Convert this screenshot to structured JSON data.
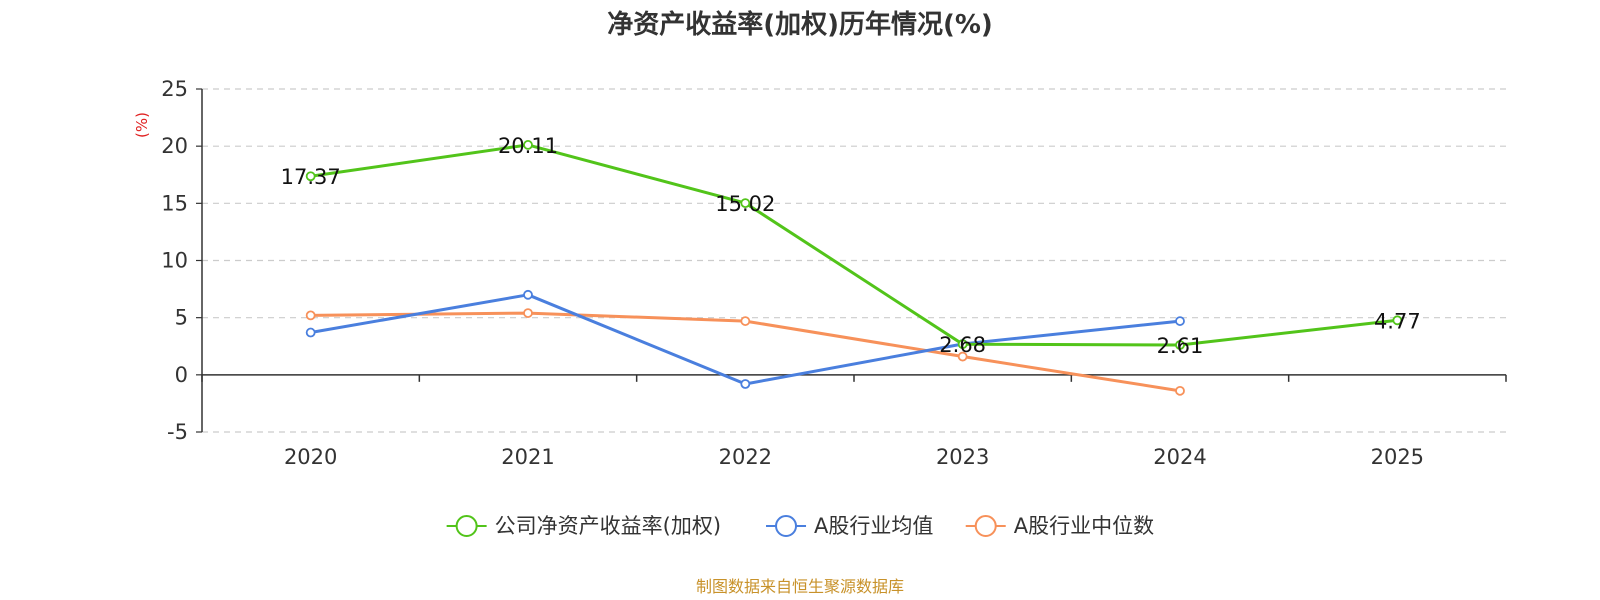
{
  "chart_data": {
    "type": "line",
    "title": "净资产收益率(加权)历年情况(%)",
    "ylabel": "(%)",
    "xlabel": "",
    "categories": [
      "2020",
      "2021",
      "2022",
      "2023",
      "2024",
      "2025"
    ],
    "ylim": [
      -5,
      25
    ],
    "yticks": [
      -5,
      0,
      5,
      10,
      15,
      20,
      25
    ],
    "grid": true,
    "legend_position": "bottom",
    "series": [
      {
        "name": "公司净资产收益率(加权)",
        "color": "#52c41a",
        "values": [
          17.37,
          20.11,
          15.02,
          2.68,
          2.61,
          4.77
        ],
        "labels": [
          "17.37",
          "20.11",
          "15.02",
          "2.68",
          "2.61",
          "4.77"
        ]
      },
      {
        "name": "A股行业均值",
        "color": "#4a7fde",
        "values": [
          3.7,
          7.0,
          -0.8,
          2.7,
          4.7,
          null
        ]
      },
      {
        "name": "A股行业中位数",
        "color": "#f7915a",
        "values": [
          5.2,
          5.4,
          4.7,
          1.6,
          -1.4,
          null
        ]
      }
    ],
    "source": "制图数据来自恒生聚源数据库"
  }
}
